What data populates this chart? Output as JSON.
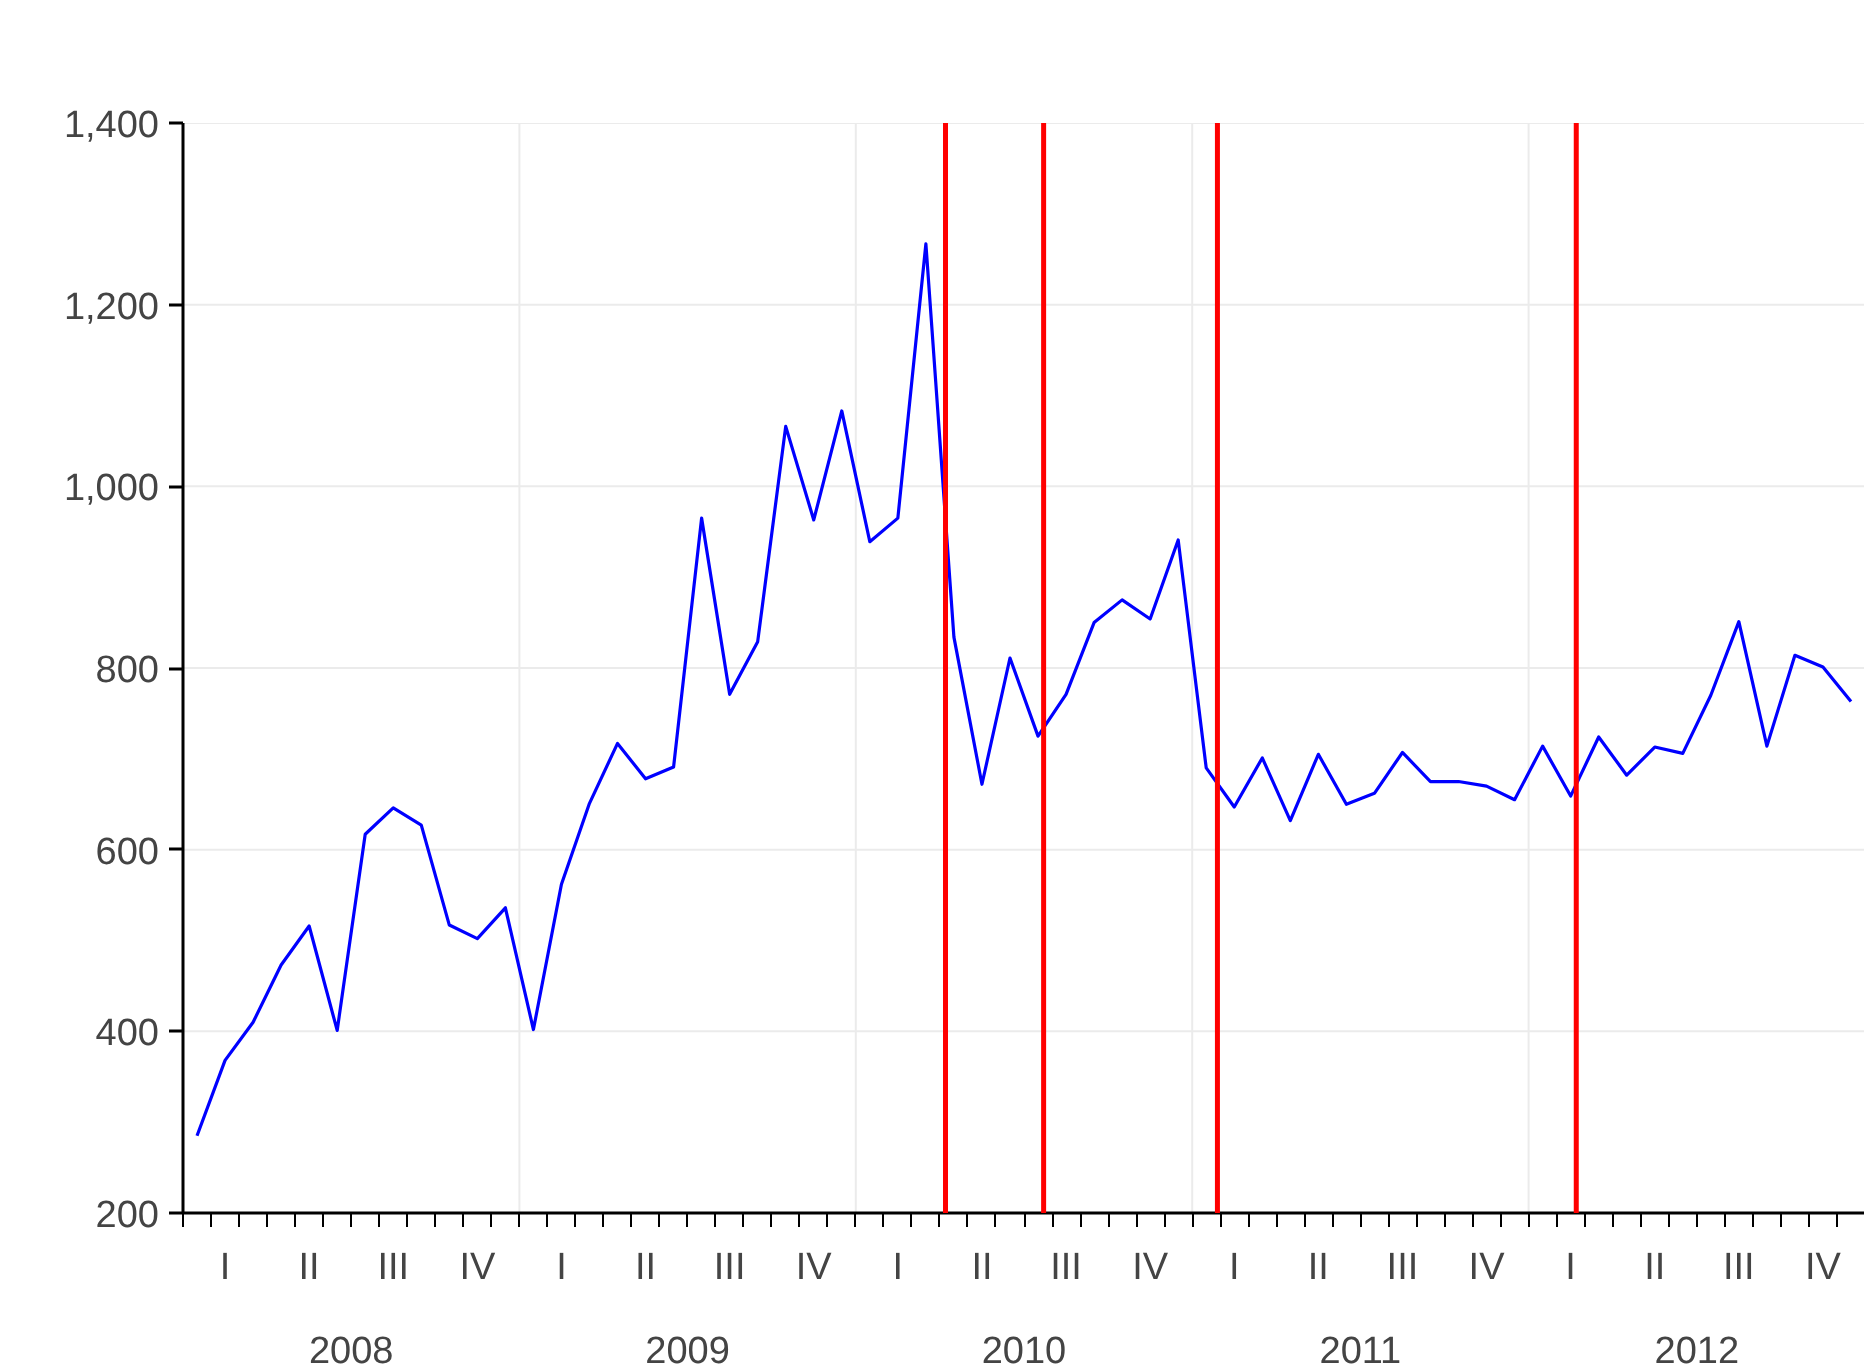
{
  "chart_data": {
    "type": "line",
    "categories": [
      null,
      "I",
      null,
      null,
      "II",
      null,
      null,
      "III",
      null,
      null,
      "IV",
      null,
      null,
      "I",
      null,
      null,
      "II",
      null,
      null,
      "III",
      null,
      null,
      "IV",
      null,
      null,
      "I",
      null,
      null,
      "II",
      null,
      null,
      "III",
      null,
      null,
      "IV",
      null,
      null,
      "I",
      null,
      null,
      "II",
      null,
      null,
      "III",
      null,
      null,
      "IV",
      null,
      null,
      "I",
      null,
      null,
      "II",
      null,
      null,
      "III",
      null,
      null,
      "IV",
      null
    ],
    "series": [
      {
        "color": "#0000ff",
        "values": [
          285,
          368,
          410,
          473,
          516,
          401,
          617,
          646,
          627,
          517,
          502,
          536,
          402,
          562,
          651,
          717,
          678,
          691,
          965,
          771,
          829,
          1066,
          963,
          1083,
          939,
          965,
          1267,
          834,
          672,
          811,
          725,
          771,
          850,
          875,
          854,
          941,
          690,
          647,
          701,
          632,
          705,
          650,
          662,
          707,
          675,
          675,
          670,
          655,
          714,
          659,
          724,
          682,
          713,
          706,
          770,
          851,
          714,
          814,
          801,
          763
        ]
      }
    ],
    "annotations": [
      "2008",
      "2009",
      "2010",
      "2011",
      "2012"
    ],
    "ylim": [
      200,
      1400
    ],
    "yticks": [
      200,
      400,
      600,
      800,
      {
        "value": 1000,
        "label": "1,000"
      },
      {
        "value": 1200,
        "label": "1,200"
      },
      {
        "value": 1400,
        "label": "1,400"
      }
    ],
    "grid": true,
    "line_style": "solid",
    "marker": "none"
  }
}
